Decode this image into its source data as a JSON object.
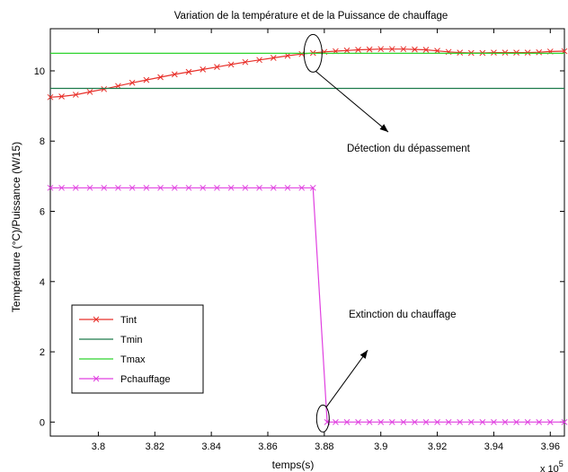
{
  "chart_data": {
    "type": "line",
    "title": "Variation de la température et de la Puissance de chauffage",
    "xlabel": "temps(s)",
    "ylabel": "Température (°C)/Puissance (W/15)",
    "x_exponent": "x 10",
    "x_exponent_power": "5",
    "xlim": [
      3.783,
      3.965
    ],
    "ylim": [
      -0.4,
      11.2
    ],
    "x_ticks": [
      3.8,
      3.82,
      3.84,
      3.86,
      3.88,
      3.9,
      3.92,
      3.94,
      3.96
    ],
    "x_tick_labels": [
      "3.8",
      "3.82",
      "3.84",
      "3.86",
      "3.88",
      "3.9",
      "3.92",
      "3.94",
      "3.96"
    ],
    "y_ticks": [
      0,
      2,
      4,
      6,
      8,
      10
    ],
    "y_tick_labels": [
      "0",
      "2",
      "4",
      "6",
      "8",
      "10"
    ],
    "grid": false,
    "legend_placement": "bottom-left",
    "series": [
      {
        "name": "Tint",
        "color": "#e8302a",
        "marker": "x",
        "x": [
          3.783,
          3.787,
          3.792,
          3.797,
          3.802,
          3.807,
          3.812,
          3.817,
          3.822,
          3.827,
          3.832,
          3.837,
          3.842,
          3.847,
          3.852,
          3.857,
          3.862,
          3.867,
          3.872,
          3.876,
          3.88,
          3.884,
          3.888,
          3.892,
          3.896,
          3.9,
          3.904,
          3.908,
          3.912,
          3.916,
          3.92,
          3.924,
          3.928,
          3.932,
          3.936,
          3.94,
          3.944,
          3.948,
          3.952,
          3.956,
          3.96,
          3.965
        ],
        "y": [
          9.25,
          9.27,
          9.32,
          9.4,
          9.48,
          9.57,
          9.66,
          9.74,
          9.82,
          9.9,
          9.97,
          10.04,
          10.11,
          10.18,
          10.25,
          10.31,
          10.37,
          10.43,
          10.48,
          10.51,
          10.54,
          10.56,
          10.58,
          10.6,
          10.61,
          10.62,
          10.62,
          10.62,
          10.61,
          10.6,
          10.57,
          10.54,
          10.52,
          10.51,
          10.51,
          10.52,
          10.52,
          10.52,
          10.52,
          10.53,
          10.55,
          10.56
        ]
      },
      {
        "name": "Tmin",
        "color": "#1c7a4a",
        "marker": "none",
        "x": [
          3.783,
          3.965
        ],
        "y": [
          9.5,
          9.5
        ]
      },
      {
        "name": "Tmax",
        "color": "#2fd42f",
        "marker": "none",
        "x": [
          3.783,
          3.965
        ],
        "y": [
          10.5,
          10.5
        ]
      },
      {
        "name": "Pchauffage",
        "color": "#e040e0",
        "marker": "x",
        "x": [
          3.783,
          3.787,
          3.792,
          3.797,
          3.802,
          3.807,
          3.812,
          3.817,
          3.822,
          3.827,
          3.832,
          3.837,
          3.842,
          3.847,
          3.852,
          3.857,
          3.862,
          3.867,
          3.872,
          3.876,
          3.881,
          3.884,
          3.888,
          3.892,
          3.896,
          3.9,
          3.904,
          3.908,
          3.912,
          3.916,
          3.92,
          3.924,
          3.928,
          3.932,
          3.936,
          3.94,
          3.944,
          3.948,
          3.952,
          3.956,
          3.96,
          3.965
        ],
        "y": [
          6.67,
          6.67,
          6.67,
          6.67,
          6.67,
          6.67,
          6.67,
          6.67,
          6.67,
          6.67,
          6.67,
          6.67,
          6.67,
          6.67,
          6.67,
          6.67,
          6.67,
          6.67,
          6.67,
          6.67,
          0,
          0,
          0,
          0,
          0,
          0,
          0,
          0,
          0,
          0,
          0,
          0,
          0,
          0,
          0,
          0,
          0,
          0,
          0,
          0,
          0,
          0
        ]
      }
    ],
    "annotations": [
      {
        "text": "Détection du dépassement",
        "target": [
          3.876,
          10.5
        ],
        "text_pos": [
          3.895,
          7.8
        ]
      },
      {
        "text": "Extinction du chauffage",
        "target": [
          3.8795,
          0.1
        ],
        "text_pos": [
          3.889,
          2.1
        ]
      }
    ]
  }
}
